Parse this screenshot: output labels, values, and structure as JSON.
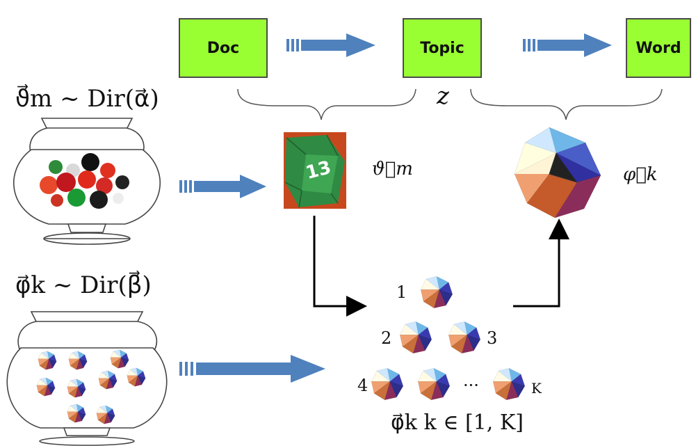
{
  "boxes": {
    "doc": "Doc",
    "topic": "Topic",
    "word": "Word"
  },
  "labels": {
    "theta_prior": "ϑ⃗m ~ Dir(α⃗)",
    "phi_prior": "φ⃗k ~ Dir(β⃗)",
    "z": "z",
    "theta_m": "ϑ⃗m",
    "phi_k": "φ⃗k",
    "phi_range": "φ⃗k  k ∈ [1, K]"
  },
  "pyramid_numbers": {
    "n1": "1",
    "n2": "2",
    "n3": "3",
    "n4": "4",
    "nK": "K",
    "ellipsis": "···"
  },
  "d20_number": "13",
  "colors": {
    "box_fill": "#99ff33",
    "arrow": "#4f81bd",
    "vase_line": "#444444"
  }
}
